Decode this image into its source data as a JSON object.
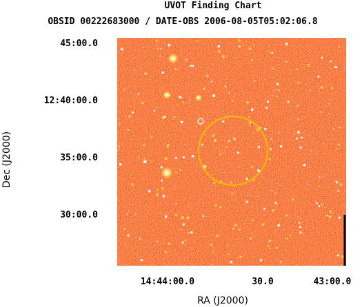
{
  "chart_data": {
    "type": "image",
    "title": "UVOT Finding Chart",
    "subtitle": "OBSID 00222683000 / DATE-OBS 2006-08-05T05:02:06.8",
    "xlabel": "RA (J2000)",
    "ylabel": "Dec (J2000)",
    "x_ticks": [
      "14:44:00.0",
      "30.0",
      "43:00.0"
    ],
    "y_ticks": [
      "45:00.0",
      "12:40:00.0",
      "35:00.0",
      "30:00.0"
    ],
    "colormap": [
      "#7a1f8c",
      "#c0152a",
      "#ff2a00",
      "#ff7a00",
      "#ffd04a",
      "#ffffff"
    ],
    "markers": [
      {
        "type": "error-circle",
        "color": "#f0c000"
      },
      {
        "type": "source-marker",
        "color": "#ffffff"
      }
    ],
    "grid": false
  }
}
